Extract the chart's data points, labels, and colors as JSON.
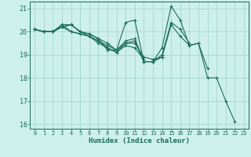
{
  "xlabel": "Humidex (Indice chaleur)",
  "ylabel": "",
  "background_color": "#cef0ed",
  "grid_color": "#aedbd7",
  "line_color": "#1a6b5a",
  "xlim": [
    -0.5,
    23.5
  ],
  "ylim": [
    15.8,
    21.3
  ],
  "yticks": [
    16,
    17,
    18,
    19,
    20,
    21
  ],
  "xticks": [
    0,
    1,
    2,
    3,
    4,
    5,
    6,
    7,
    8,
    9,
    10,
    11,
    12,
    13,
    14,
    15,
    16,
    17,
    18,
    19,
    20,
    21,
    22,
    23
  ],
  "series": [
    [
      20.1,
      20.0,
      20.0,
      20.2,
      20.3,
      20.0,
      19.9,
      19.7,
      19.5,
      19.2,
      20.4,
      20.5,
      18.7,
      18.7,
      19.3,
      21.1,
      20.5,
      19.4,
      19.5,
      18.0,
      18.0,
      17.0,
      16.1,
      null
    ],
    [
      20.1,
      20.0,
      20.0,
      20.2,
      20.3,
      20.0,
      19.8,
      19.6,
      19.3,
      19.1,
      19.5,
      19.6,
      18.7,
      18.7,
      18.9,
      20.3,
      19.8,
      19.4,
      19.5,
      18.4,
      null,
      null,
      null,
      null
    ],
    [
      20.1,
      20.0,
      20.0,
      20.3,
      20.3,
      20.0,
      19.9,
      19.7,
      19.2,
      19.2,
      19.6,
      19.7,
      18.7,
      18.7,
      19.0,
      20.4,
      20.1,
      19.5,
      null,
      null,
      null,
      null,
      null,
      null
    ],
    [
      20.1,
      20.0,
      20.0,
      20.3,
      20.0,
      19.9,
      19.8,
      19.6,
      19.4,
      19.2,
      19.5,
      19.5,
      18.9,
      18.8,
      18.9,
      null,
      null,
      null,
      null,
      null,
      null,
      null,
      null,
      null
    ],
    [
      20.1,
      20.0,
      20.0,
      20.2,
      20.0,
      19.9,
      19.8,
      19.5,
      19.3,
      19.1,
      19.4,
      19.3,
      18.8,
      null,
      null,
      null,
      null,
      null,
      null,
      null,
      null,
      null,
      null,
      null
    ]
  ]
}
